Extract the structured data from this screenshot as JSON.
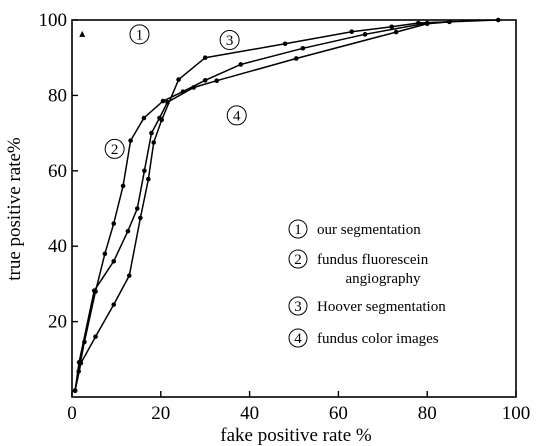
{
  "chart_data": {
    "type": "line",
    "title": "",
    "xlabel": "fake positive rate %",
    "ylabel": "true positive rate%",
    "xlim": [
      0,
      100
    ],
    "ylim": [
      0,
      100
    ],
    "xticks": [
      0,
      20,
      40,
      60,
      80,
      100
    ],
    "yticks": [
      20,
      40,
      60,
      80,
      100
    ],
    "xtick_labels": [
      "0",
      "20",
      "40",
      "60",
      "80",
      "100"
    ],
    "ytick_labels": [
      "20",
      "40",
      "60",
      "80",
      "100"
    ],
    "grid": false,
    "legend_position": "lower-right",
    "series": [
      {
        "name": "our segmentation",
        "id": "1",
        "marker": "triangle",
        "x": [
          2.3
        ],
        "y": [
          96.2
        ]
      },
      {
        "name": "fundus fluorescein angiography",
        "id": "2",
        "x": [
          0.7,
          1.5,
          2.8,
          5.3,
          7.4,
          9.4,
          11.5,
          13.2,
          16.2,
          20.5,
          25,
          30,
          38,
          52,
          66,
          80,
          85
        ],
        "y": [
          1.7,
          6.8,
          14.6,
          28,
          38,
          46,
          56,
          68,
          74,
          78.5,
          81,
          84,
          88.2,
          92.5,
          96.2,
          99.2,
          99.5
        ]
      },
      {
        "name": "Hoover segmentation",
        "id": "3",
        "x": [
          0.7,
          2,
          5.3,
          9.4,
          12.9,
          15.4,
          17.2,
          18.4,
          20.2,
          24,
          30,
          48,
          63,
          72,
          78,
          96
        ],
        "y": [
          1.7,
          9,
          16,
          24.5,
          32.2,
          47.5,
          57.8,
          67.5,
          73.5,
          84.2,
          90,
          93.7,
          96.9,
          98.2,
          99.2,
          100
        ]
      },
      {
        "name": "fundus color images",
        "id": "4",
        "x": [
          0.7,
          1.6,
          5,
          9.4,
          12.6,
          14.7,
          16.3,
          17.9,
          19.7,
          21.5,
          27.4,
          32.6,
          50.5,
          73,
          80,
          85
        ],
        "y": [
          1.7,
          9.2,
          28.2,
          36,
          44,
          50,
          60,
          70,
          74,
          78.2,
          82.1,
          83.9,
          89.8,
          96.8,
          99,
          99.5
        ]
      }
    ],
    "annotations": [
      {
        "text": "1",
        "x": 15.2,
        "y": 96.2
      },
      {
        "text": "2",
        "x": 9.6,
        "y": 65.8
      },
      {
        "text": "3",
        "x": 35.5,
        "y": 94.7
      },
      {
        "text": "4",
        "x": 37.1,
        "y": 74.7
      }
    ],
    "legend": [
      {
        "id": "1",
        "lines": [
          "our segmentation"
        ]
      },
      {
        "id": "2",
        "lines": [
          "fundus fluorescein",
          "angiography"
        ]
      },
      {
        "id": "3",
        "lines": [
          "Hoover segmentation"
        ]
      },
      {
        "id": "4",
        "lines": [
          "fundus color images"
        ]
      }
    ]
  }
}
